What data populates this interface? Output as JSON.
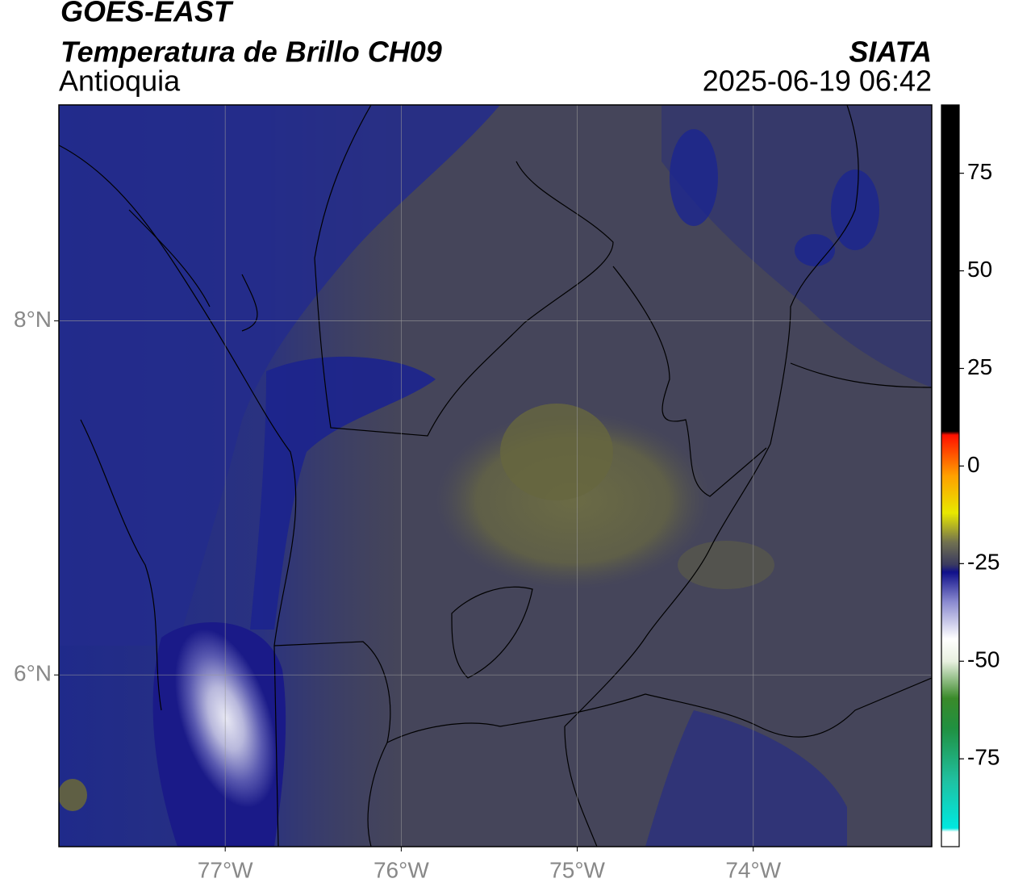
{
  "header": {
    "title": "GOES-EAST",
    "subtitle": "Temperatura de Brillo CH09",
    "region": "Antioquia",
    "source": "SIATA",
    "timestamp": "2025-06-19 06:42"
  },
  "map": {
    "xlim": [
      -77.945,
      -72.986
    ],
    "ylim": [
      5.03,
      9.22
    ],
    "xticks": [
      {
        "value": -77,
        "label": "77°W"
      },
      {
        "value": -76,
        "label": "76°W"
      },
      {
        "value": -75,
        "label": "75°W"
      },
      {
        "value": -74,
        "label": "74°W"
      }
    ],
    "yticks": [
      {
        "value": 8,
        "label": "8°N"
      },
      {
        "value": 6,
        "label": "6°N"
      }
    ]
  },
  "colorbar": {
    "lim": [
      -97.5,
      92.5
    ],
    "ticks": [
      75,
      50,
      25,
      0,
      -25,
      -50,
      -75
    ]
  }
}
